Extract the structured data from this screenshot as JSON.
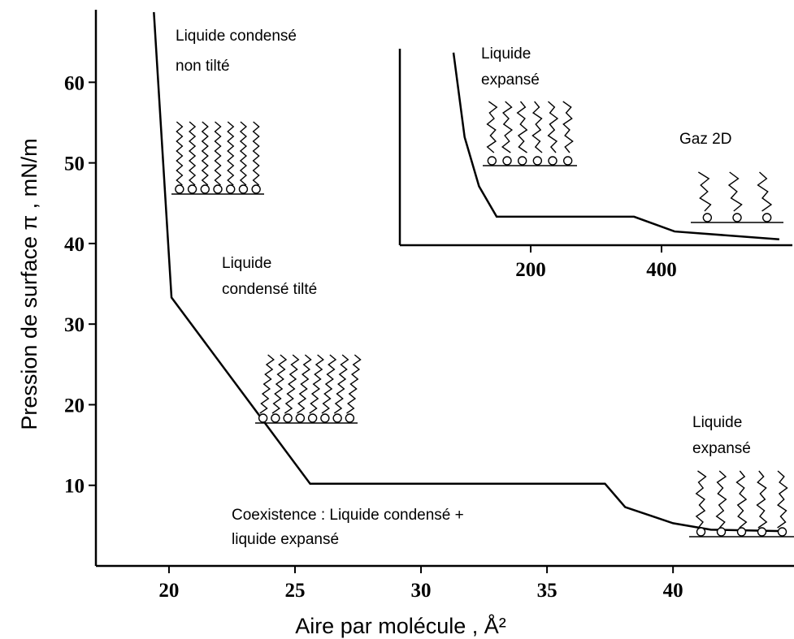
{
  "chart_data": [
    {
      "type": "line",
      "xlabel": "Aire par molécule  , Å²",
      "ylabel": "Pression de surface π  , mN/m",
      "xlim": [
        17.1,
        44.8
      ],
      "ylim": [
        0,
        69
      ],
      "xticks": [
        20,
        25,
        30,
        35,
        40
      ],
      "yticks": [
        10,
        20,
        30,
        40,
        50,
        60
      ],
      "series": [
        {
          "color": "#000000",
          "x": [
            19.4,
            20.1,
            25.6,
            37.3,
            38.1,
            40,
            41.5,
            44.5
          ],
          "y": [
            68.7,
            33.3,
            10.2,
            10.2,
            7.3,
            5.3,
            4.5,
            4.3
          ]
        }
      ],
      "annotations": [
        {
          "lines": [
            "Liquide condensé",
            "non tilté"
          ]
        },
        {
          "lines": [
            "Liquide",
            "condensé tilté"
          ]
        },
        {
          "lines": [
            "Coexistence : Liquide condensé +",
            "liquide expansé"
          ]
        },
        {
          "lines": [
            "Liquide",
            "expansé"
          ]
        }
      ]
    },
    {
      "type": "line",
      "xlim": [
        0,
        600
      ],
      "ylim": [
        0,
        1
      ],
      "xticks": [
        200,
        400
      ],
      "series": [
        {
          "color": "#000000",
          "x": [
            82,
            99,
            121,
            148,
            358,
            420,
            580
          ],
          "y": [
            0.98,
            0.55,
            0.3,
            0.145,
            0.145,
            0.07,
            0.03
          ]
        }
      ],
      "annotations": [
        {
          "lines": [
            "Liquide",
            "expansé"
          ]
        },
        {
          "lines": [
            "Gaz 2D"
          ]
        }
      ]
    }
  ]
}
